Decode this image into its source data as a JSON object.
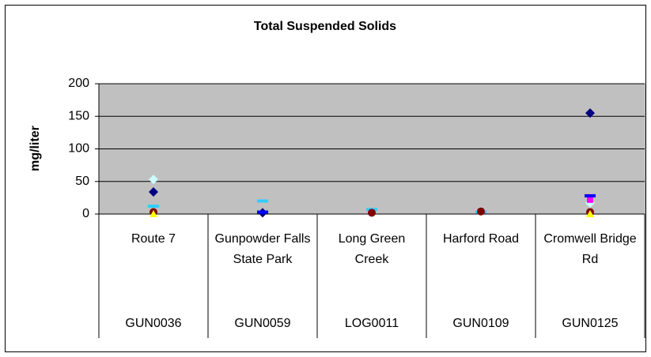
{
  "chart_data": {
    "type": "scatter",
    "title": "Total Suspended Solids",
    "y_label": "mg/liter",
    "categories": [
      "Route 7",
      "Gunpowder Falls State Park",
      "Long Green Creek",
      "Harford Road",
      "Cromwell Bridge Rd"
    ],
    "category_codes": [
      "GUN0036",
      "GUN0059",
      "LOG0011",
      "GUN0109",
      "GUN0125"
    ],
    "ylim": [
      0,
      200
    ],
    "yticks": [
      0,
      50,
      100,
      150,
      200
    ],
    "grid": true,
    "series": [
      {
        "color": "#000080",
        "marker": "diamond",
        "values": [
          34,
          2,
          null,
          null,
          155
        ]
      },
      {
        "color": "#ccffff",
        "marker": "diamond",
        "values": [
          53,
          null,
          null,
          null,
          17
        ]
      },
      {
        "color": "#ff00ff",
        "marker": "square",
        "values": [
          null,
          null,
          null,
          null,
          22
        ]
      },
      {
        "color": "#0000ff",
        "marker": "dash",
        "values": [
          null,
          3,
          null,
          null,
          28
        ]
      },
      {
        "color": "#33ccff",
        "marker": "dash",
        "values": [
          12,
          20,
          7,
          3,
          null
        ]
      },
      {
        "color": "#800000",
        "marker": "circle",
        "values": [
          3,
          null,
          2,
          4,
          3
        ]
      },
      {
        "color": "#ffff00",
        "marker": "triangle",
        "values": [
          0,
          null,
          null,
          null,
          0
        ]
      }
    ]
  }
}
